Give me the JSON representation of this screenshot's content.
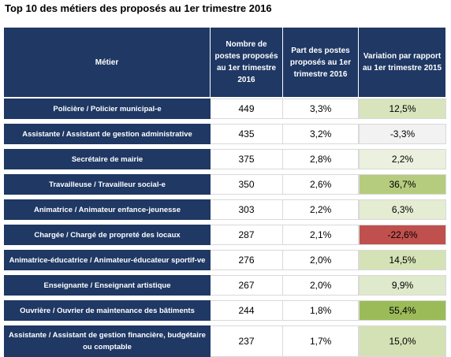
{
  "title": "Top 10 des métiers des proposés au 1er trimestre 2016",
  "headers": {
    "metier": "Métier",
    "nombre": "Nombre de postes proposés au 1er trimestre 2016",
    "part": "Part des postes proposés au 1er trimestre 2016",
    "variation": "Variation par rapport au 1er trimestre 2015"
  },
  "colors": {
    "header_bg": "#1f3864",
    "positive_light": "#d8e4bc",
    "positive_strong": "#9bbb59",
    "negative_strong": "#c0504d",
    "neutral": "#f2f2f2"
  },
  "rows": [
    {
      "metier": "Policière / Policier municipal-e",
      "nombre": "449",
      "part": "3,3%",
      "variation": "12,5%",
      "color": "#d8e4bc"
    },
    {
      "metier": "Assistante / Assistant de gestion administrative",
      "nombre": "435",
      "part": "3,2%",
      "variation": "-3,3%",
      "color": "#f2f2f2"
    },
    {
      "metier": "Secrétaire de mairie",
      "nombre": "375",
      "part": "2,8%",
      "variation": "2,2%",
      "color": "#ebf1de"
    },
    {
      "metier": "Travailleuse / Travailleur social-e",
      "nombre": "350",
      "part": "2,6%",
      "variation": "36,7%",
      "color": "#b5cc7e"
    },
    {
      "metier": "Animatrice / Animateur enfance-jeunesse",
      "nombre": "303",
      "part": "2,2%",
      "variation": "6,3%",
      "color": "#e4ecd2"
    },
    {
      "metier": "Chargée / Chargé de propreté des locaux",
      "nombre": "287",
      "part": "2,1%",
      "variation": "-22,6%",
      "color": "#c0504d"
    },
    {
      "metier": "Animatrice-éducatrice / Animateur-éducateur sportif-ve",
      "nombre": "276",
      "part": "2,0%",
      "variation": "14,5%",
      "color": "#d4e2b6"
    },
    {
      "metier": "Enseignante / Enseignant artistique",
      "nombre": "267",
      "part": "2,0%",
      "variation": "9,9%",
      "color": "#dfe9cb"
    },
    {
      "metier": "Ouvrière / Ouvrier de maintenance des bâtiments",
      "nombre": "244",
      "part": "1,8%",
      "variation": "55,4%",
      "color": "#9bbb59"
    },
    {
      "metier": "Assistante / Assistant de gestion financière, budgétaire ou comptable",
      "nombre": "237",
      "part": "1,7%",
      "variation": "15,0%",
      "color": "#d3e1b4"
    }
  ]
}
